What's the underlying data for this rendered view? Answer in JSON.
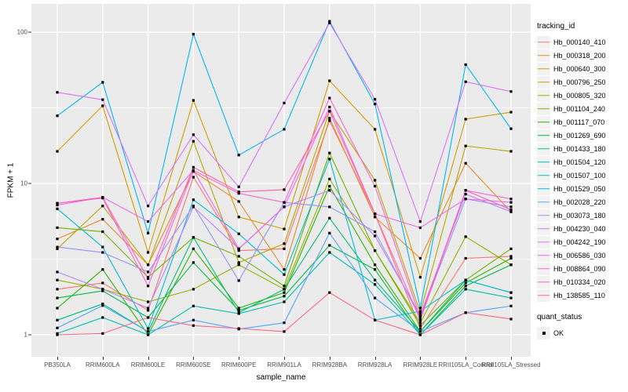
{
  "figure": {
    "panel_background": "#EBEBEB",
    "grid_color": "#FFFFFF",
    "axis_text_color": "#4D4D4D",
    "point_color": "#000000"
  },
  "axes": {
    "x": {
      "title": "sample_name"
    },
    "y": {
      "title": "FPKM + 1",
      "scale": "log10",
      "tick_labels": [
        "1",
        "10",
        "100"
      ],
      "tick_values": [
        1,
        10,
        100
      ]
    }
  },
  "legend": {
    "tracking_title": "tracking_id",
    "quant_title": "quant_status",
    "quant_items": [
      {
        "label": "OK",
        "shape": "square",
        "color": "#000000"
      }
    ]
  },
  "chart_data": {
    "type": "line",
    "title": "",
    "xlabel": "sample_name",
    "ylabel": "FPKM + 1",
    "y_scale": "log10",
    "ylim": [
      0.75,
      150
    ],
    "y_major_ticks": [
      1,
      10,
      100
    ],
    "y_minor_ticks": [
      3.162,
      31.62
    ],
    "grid": true,
    "legend_position": "right",
    "point_marker": {
      "shape": "square",
      "color": "#000000",
      "legend_title": "quant_status",
      "legend_label": "OK"
    },
    "categories": [
      "PB350LA",
      "RRIM600LA",
      "RRIM600LE",
      "RRIM600SE",
      "RRIM600PE",
      "RRIM901LA",
      "RRIM928BA",
      "RRIM928LA",
      "RRIM928LE",
      "RRII105LA_Control",
      "RRII105LA_Stressed"
    ],
    "series": [
      {
        "name": "Hb_000140_410",
        "color": "#F8766D",
        "values": [
          2.0,
          2.2,
          1.45,
          11,
          3.6,
          3.7,
          26,
          6.3,
          1.1,
          3.2,
          3.3
        ]
      },
      {
        "name": "Hb_000318_200",
        "color": "#E98A2B",
        "values": [
          4.3,
          5.8,
          2.9,
          12,
          7.6,
          2.7,
          27,
          6.0,
          3.2,
          13.6,
          6.5
        ]
      },
      {
        "name": "Hb_000640_300",
        "color": "#D29E00",
        "values": [
          16.3,
          32.6,
          3.5,
          35.4,
          6.0,
          5.0,
          47.7,
          22.8,
          2.4,
          26.6,
          29.6
        ]
      },
      {
        "name": "Hb_000796_250",
        "color": "#BBA800",
        "values": [
          3.7,
          7.1,
          2.9,
          19,
          3.0,
          4.0,
          30,
          10.5,
          1.4,
          17.7,
          16.3
        ]
      },
      {
        "name": "Hb_000805_320",
        "color": "#9CB000",
        "values": [
          2.3,
          2.0,
          1.65,
          2.0,
          2.9,
          2.0,
          10.7,
          3.6,
          1.2,
          4.45,
          2.9
        ]
      },
      {
        "name": "Hb_001104_240",
        "color": "#6FB500",
        "values": [
          5.1,
          4.8,
          2.4,
          4.4,
          3.3,
          2.1,
          15.9,
          3.6,
          1.15,
          2.3,
          3.7
        ]
      },
      {
        "name": "Hb_001117_070",
        "color": "#2CB600",
        "values": [
          1.5,
          2.7,
          1.0,
          3.7,
          1.5,
          1.9,
          9.6,
          2.9,
          1.05,
          2.2,
          3.2
        ]
      },
      {
        "name": "Hb_001269_690",
        "color": "#00BB46",
        "values": [
          1.75,
          1.95,
          1.3,
          3.0,
          1.45,
          1.8,
          3.9,
          2.7,
          1.0,
          2.1,
          2.9
        ]
      },
      {
        "name": "Hb_001433_180",
        "color": "#00BF7D",
        "values": [
          1.25,
          1.6,
          1.05,
          4.4,
          1.4,
          2.0,
          5.9,
          2.3,
          1.05,
          2.3,
          1.9
        ]
      },
      {
        "name": "Hb_001504_120",
        "color": "#00C1AB",
        "values": [
          1.02,
          1.3,
          1.0,
          1.55,
          1.38,
          1.65,
          3.5,
          2.15,
          1.0,
          2.0,
          1.75
        ]
      },
      {
        "name": "Hb_001507_100",
        "color": "#00BFD2",
        "values": [
          6.8,
          3.8,
          1.1,
          7.8,
          4.65,
          2.5,
          14.5,
          1.25,
          1.43,
          2.3,
          1.9
        ]
      },
      {
        "name": "Hb_001529_050",
        "color": "#00B8F1",
        "values": [
          28,
          46.6,
          4.7,
          97,
          15.4,
          22.8,
          118,
          33.5,
          1.5,
          61,
          23
        ]
      },
      {
        "name": "Hb_002028_220",
        "color": "#51A7FF",
        "values": [
          1.11,
          1.56,
          1.05,
          1.25,
          1.09,
          1.2,
          4.7,
          1.75,
          1.05,
          1.4,
          1.55
        ]
      },
      {
        "name": "Hb_003073_180",
        "color": "#9393FF",
        "values": [
          3.8,
          3.5,
          2.6,
          7.1,
          2.28,
          7.5,
          7.0,
          4.8,
          1.3,
          7.9,
          7.0
        ]
      },
      {
        "name": "Hb_004230_040",
        "color": "#BE80FF",
        "values": [
          2.6,
          2.0,
          1.5,
          7.0,
          3.7,
          7.0,
          9.0,
          4.5,
          1.35,
          8.5,
          6.5
        ]
      },
      {
        "name": "Hb_004242_190",
        "color": "#DC71FA",
        "values": [
          40,
          35.8,
          7.1,
          21,
          9.5,
          34,
          115,
          36,
          5.6,
          47,
          40.5
        ]
      },
      {
        "name": "Hb_006586_030",
        "color": "#EF67EC",
        "values": [
          7.2,
          8.1,
          5.6,
          12.2,
          3.7,
          7.0,
          32,
          6.3,
          5.1,
          7.9,
          7.5
        ]
      },
      {
        "name": "Hb_008864_090",
        "color": "#FA62D6",
        "values": [
          7.4,
          8.0,
          2.1,
          12.2,
          8.6,
          7.5,
          36.7,
          9.6,
          1.3,
          9.0,
          7.9
        ]
      },
      {
        "name": "Hb_010334_020",
        "color": "#FF62B6",
        "values": [
          7.4,
          8.1,
          2.35,
          12.8,
          8.8,
          9.1,
          30,
          6.3,
          1.25,
          9.0,
          6.7
        ]
      },
      {
        "name": "Hb_138585_110",
        "color": "#FF6685",
        "values": [
          1.0,
          1.02,
          1.3,
          1.15,
          1.1,
          1.05,
          1.9,
          1.25,
          1.0,
          1.4,
          1.27
        ]
      }
    ]
  }
}
